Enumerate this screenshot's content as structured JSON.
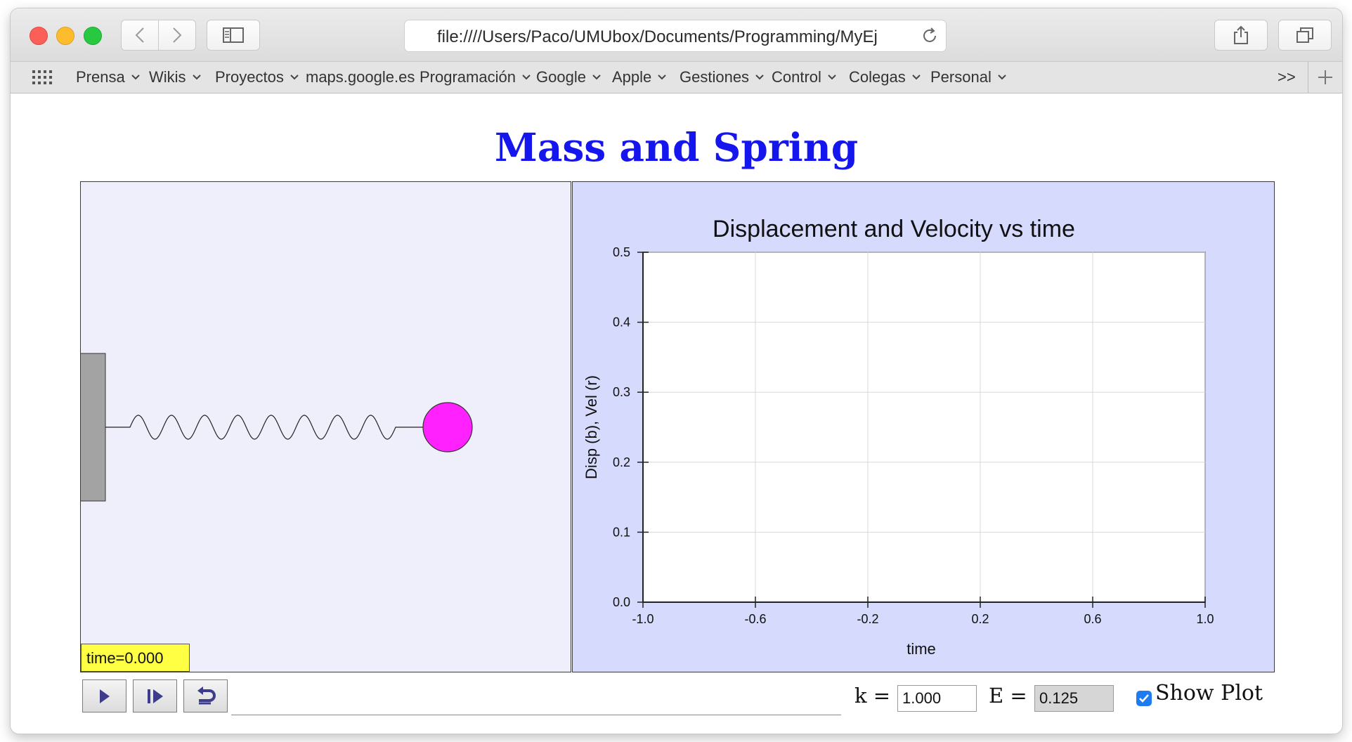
{
  "browser": {
    "url": "file:////Users/Paco/UMUbox/Documents/Programming/MyEj",
    "bookmarks": [
      {
        "label": "Prensa",
        "menu": true
      },
      {
        "label": "Wikis",
        "menu": true
      },
      {
        "label": "Proyectos",
        "menu": true
      },
      {
        "label": "maps.google.es",
        "menu": false
      },
      {
        "label": "Programación",
        "menu": true
      },
      {
        "label": "Google",
        "menu": true
      },
      {
        "label": "Apple",
        "menu": true
      },
      {
        "label": "Gestiones",
        "menu": true
      },
      {
        "label": "Control",
        "menu": true
      },
      {
        "label": "Colegas",
        "menu": true
      },
      {
        "label": "Personal",
        "menu": true
      }
    ],
    "overflow_label": ">>"
  },
  "page": {
    "title": "Mass and Spring",
    "time_display": "time=0.000",
    "k_label": "k =",
    "k_value": "1.000",
    "e_label": "E =",
    "e_value": "0.125",
    "show_plot_label": "Show Plot",
    "show_plot_checked": true
  },
  "colors": {
    "title": "#1515ee",
    "mass": "#ff22ff",
    "sim_background": "#efeffb",
    "plot_background": "#d6dafc",
    "time_box": "#ffff44",
    "wall": "#a3a3a3"
  },
  "chart_data": {
    "type": "line",
    "title": "Displacement and Velocity vs time",
    "xlabel": "time",
    "ylabel": "Disp (b), Vel (r)",
    "xlim": [
      -1.0,
      1.0
    ],
    "ylim": [
      0.0,
      0.5
    ],
    "xticks": [
      "-1.0",
      "-0.6",
      "-0.2",
      "0.2",
      "0.6",
      "1.0"
    ],
    "yticks": [
      "0.0",
      "0.1",
      "0.2",
      "0.3",
      "0.4",
      "0.5"
    ],
    "grid": true,
    "series": []
  },
  "icons": {
    "back": "chevron-left-icon",
    "forward": "chevron-right-icon",
    "sidebar": "sidebar-icon",
    "reload": "reload-icon",
    "share": "share-icon",
    "tabs": "tabs-icon",
    "play": "play-icon",
    "step": "step-icon",
    "reset": "reset-icon"
  }
}
